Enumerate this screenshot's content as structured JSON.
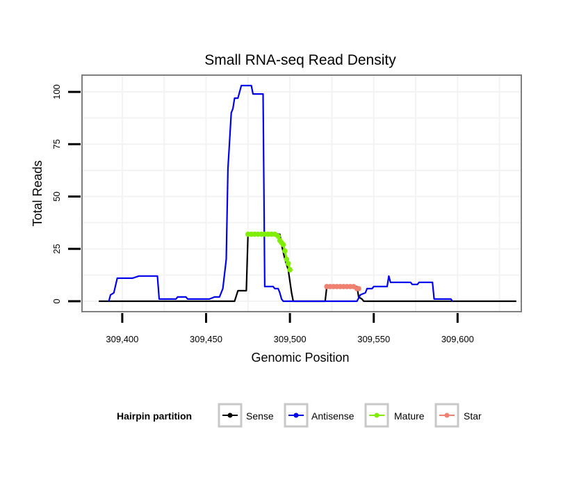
{
  "chart_data": {
    "type": "line",
    "title": "Small RNA-seq Read Density",
    "xlabel": "Genomic Position",
    "ylabel": "Total Reads",
    "xlim": [
      309376,
      309638
    ],
    "ylim": [
      -5,
      108
    ],
    "x_ticks": [
      309400,
      309450,
      309500,
      309550,
      309600
    ],
    "x_tick_labels": [
      "309,400",
      "309,450",
      "309,500",
      "309,550",
      "309,600"
    ],
    "y_ticks": [
      0,
      25,
      50,
      75,
      100
    ],
    "y_tick_labels": [
      "0",
      "25",
      "50",
      "75",
      "100"
    ],
    "grid": true,
    "legend_title": "Hairpin partition",
    "legend_position": "bottom",
    "series": [
      {
        "name": "Sense",
        "color": "#000000",
        "style": "line",
        "points": [
          [
            309386,
            0
          ],
          [
            309467,
            0
          ],
          [
            309469,
            5
          ],
          [
            309474,
            5
          ],
          [
            309475,
            32
          ],
          [
            309494,
            32
          ],
          [
            309495,
            27
          ],
          [
            309497,
            20
          ],
          [
            309499,
            15
          ],
          [
            309501,
            4
          ],
          [
            309502,
            0
          ],
          [
            309521,
            0
          ],
          [
            309522,
            7
          ],
          [
            309540,
            7
          ],
          [
            309541,
            2
          ],
          [
            309543,
            1
          ],
          [
            309544,
            0
          ],
          [
            309635,
            0
          ]
        ]
      },
      {
        "name": "Antisense",
        "color": "#0000ee",
        "style": "line",
        "points": [
          [
            309392,
            0
          ],
          [
            309393,
            3
          ],
          [
            309395,
            4
          ],
          [
            309397,
            11
          ],
          [
            309406,
            11
          ],
          [
            309410,
            12
          ],
          [
            309421,
            12
          ],
          [
            309422,
            1
          ],
          [
            309432,
            1
          ],
          [
            309433,
            2
          ],
          [
            309438,
            2
          ],
          [
            309439,
            1
          ],
          [
            309452,
            1
          ],
          [
            309455,
            2
          ],
          [
            309458,
            2
          ],
          [
            309460,
            6
          ],
          [
            309462,
            20
          ],
          [
            309463,
            63
          ],
          [
            309465,
            90
          ],
          [
            309466,
            92
          ],
          [
            309467,
            97
          ],
          [
            309469,
            97
          ],
          [
            309471,
            103
          ],
          [
            309477,
            103
          ],
          [
            309478,
            99
          ],
          [
            309484,
            99
          ],
          [
            309485,
            7
          ],
          [
            309490,
            7
          ],
          [
            309491,
            6
          ],
          [
            309493,
            6
          ],
          [
            309494,
            4
          ],
          [
            309495,
            1
          ],
          [
            309496,
            0
          ],
          [
            309540,
            0
          ],
          [
            309542,
            3
          ],
          [
            309545,
            4
          ],
          [
            309546,
            6
          ],
          [
            309549,
            6
          ],
          [
            309550,
            7
          ],
          [
            309558,
            7
          ],
          [
            309559,
            12
          ],
          [
            309560,
            9
          ],
          [
            309572,
            9
          ],
          [
            309573,
            8
          ],
          [
            309576,
            8
          ],
          [
            309577,
            9
          ],
          [
            309585,
            9
          ],
          [
            309586,
            1
          ],
          [
            309596,
            1
          ],
          [
            309597,
            0
          ]
        ]
      },
      {
        "name": "Mature",
        "color": "#7fee00",
        "style": "points",
        "points": [
          [
            309475,
            32
          ],
          [
            309477,
            32
          ],
          [
            309479,
            32
          ],
          [
            309481,
            32
          ],
          [
            309483,
            32
          ],
          [
            309485,
            32
          ],
          [
            309487,
            32
          ],
          [
            309489,
            32
          ],
          [
            309491,
            32
          ],
          [
            309493,
            31
          ],
          [
            309494,
            29
          ],
          [
            309495,
            28
          ],
          [
            309496,
            27
          ],
          [
            309497,
            24
          ],
          [
            309498,
            20
          ],
          [
            309499,
            18
          ],
          [
            309500,
            15
          ]
        ]
      },
      {
        "name": "Star",
        "color": "#f08070",
        "style": "points",
        "points": [
          [
            309522,
            7
          ],
          [
            309524,
            7
          ],
          [
            309526,
            7
          ],
          [
            309528,
            7
          ],
          [
            309530,
            7
          ],
          [
            309532,
            7
          ],
          [
            309534,
            7
          ],
          [
            309536,
            7
          ],
          [
            309538,
            7
          ],
          [
            309540,
            6
          ],
          [
            309541,
            6
          ]
        ]
      }
    ]
  }
}
